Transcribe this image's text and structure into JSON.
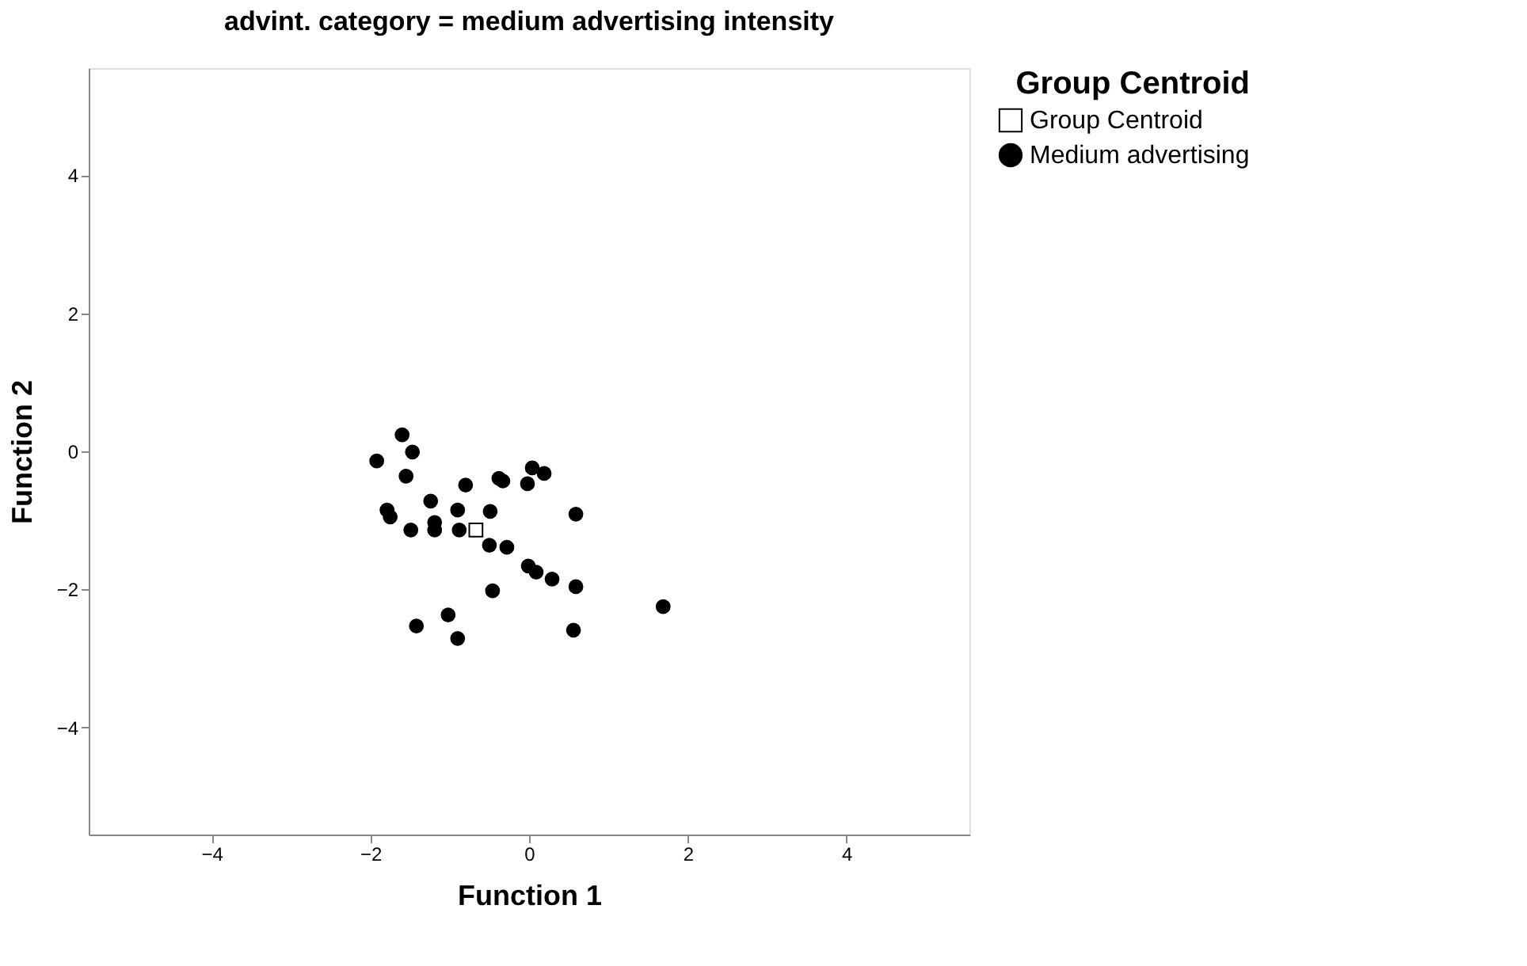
{
  "chart_data": {
    "type": "scatter",
    "title": "advint. category = medium advertising intensity",
    "xlabel": "Function 1",
    "ylabel": "Function 2",
    "legend_title": "Group Centroid",
    "legend": "top right",
    "grid": false,
    "xlim": [
      -5.55,
      5.55
    ],
    "xticks": [
      -4,
      -2,
      0,
      2,
      4
    ],
    "ylim": [
      -5.55,
      5.55
    ],
    "yticks": [
      -4,
      -2,
      0,
      2,
      4
    ],
    "series": [
      {
        "name": "Group Centroid",
        "color": "#ffffff",
        "marker": "square",
        "x": [
          -0.67
        ],
        "values": [
          -1.14
        ]
      },
      {
        "name": "Medium advertising",
        "color": "#000000",
        "marker": "circle",
        "x": [
          -1.6,
          -1.47,
          -1.92,
          -1.55,
          -0.8,
          -0.38,
          -0.33,
          0.04,
          0.19,
          -0.02,
          0.59,
          -1.24,
          -1.79,
          -1.75,
          -1.49,
          -1.19,
          -1.19,
          -0.9,
          -0.49,
          -0.88,
          -0.5,
          -0.28,
          -0.01,
          0.09,
          0.29,
          0.59,
          -0.46,
          1.69,
          -1.02,
          -1.42,
          -0.9,
          0.56
        ],
        "values": [
          0.24,
          -0.01,
          -0.14,
          -0.36,
          -0.49,
          -0.39,
          -0.43,
          -0.24,
          -0.32,
          -0.47,
          -0.91,
          -0.72,
          -0.85,
          -0.95,
          -1.14,
          -1.03,
          -1.14,
          -0.85,
          -0.87,
          -1.14,
          -1.36,
          -1.39,
          -1.66,
          -1.75,
          -1.85,
          -1.96,
          -2.02,
          -2.25,
          -2.37,
          -2.53,
          -2.71,
          -2.59
        ]
      }
    ]
  }
}
